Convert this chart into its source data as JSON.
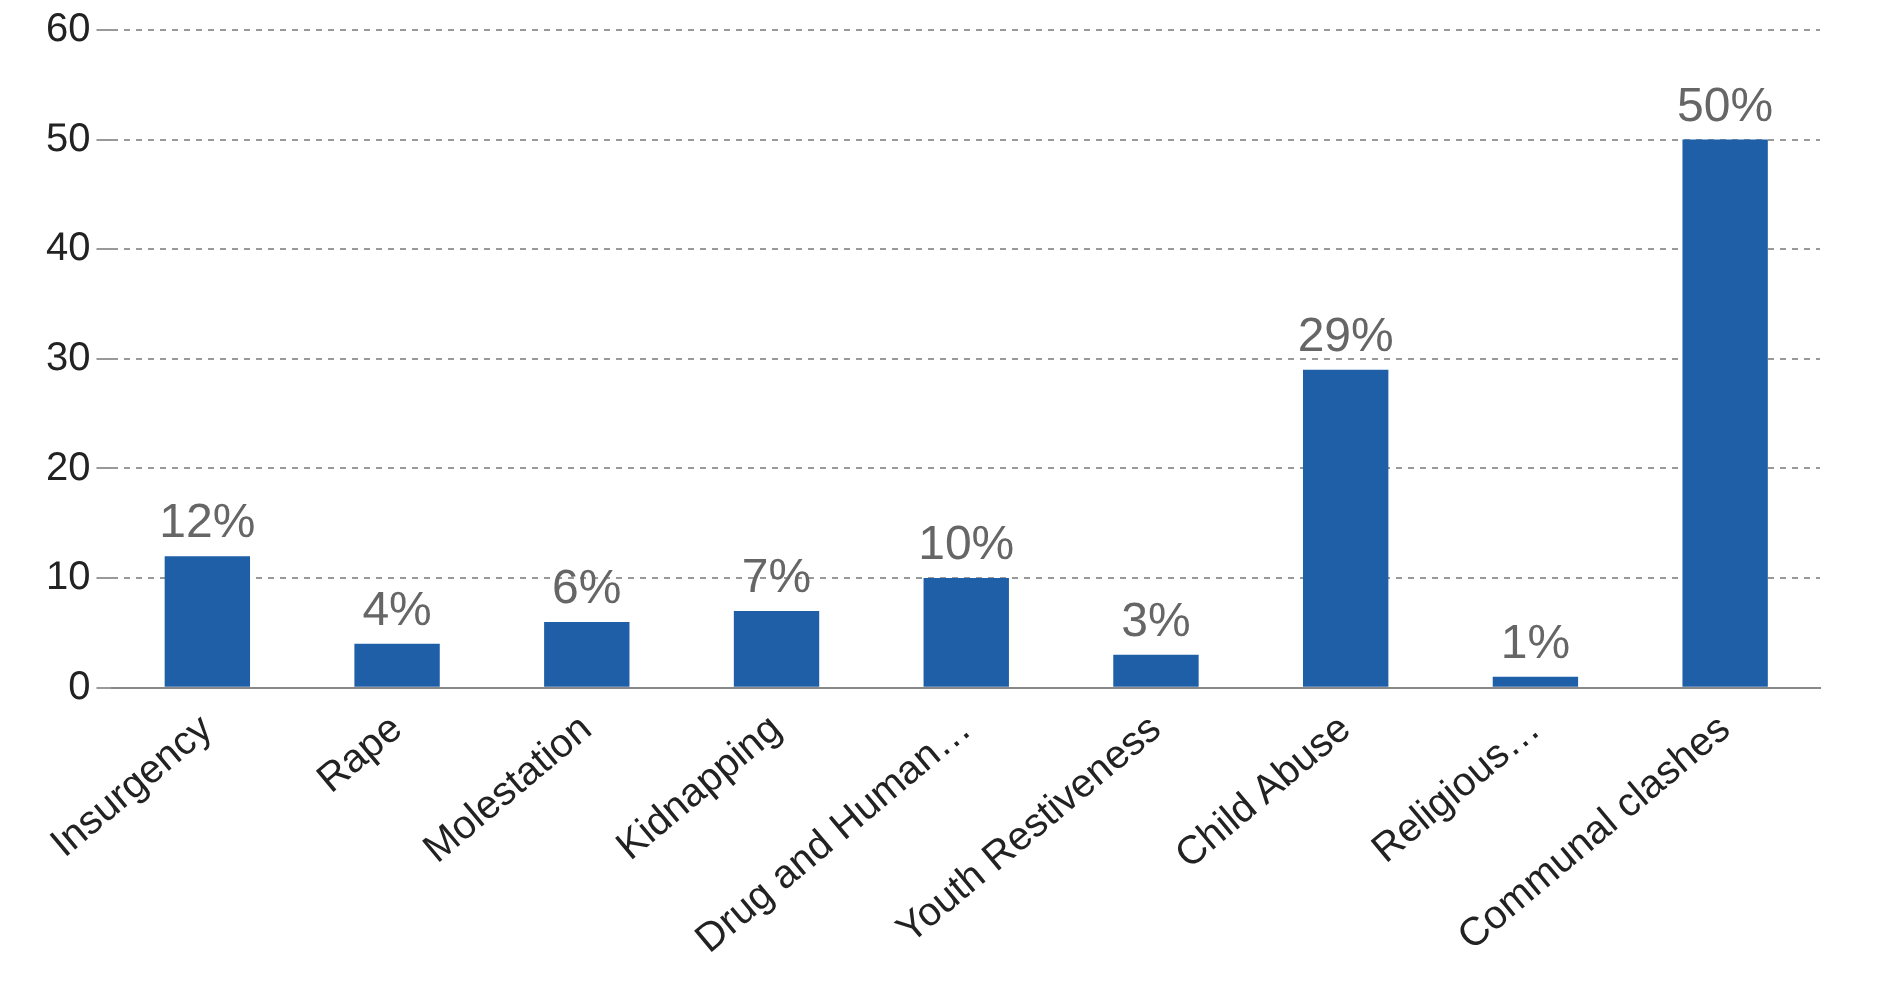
{
  "chart_data": {
    "type": "bar",
    "categories": [
      "Insurgency",
      "Rape",
      "Molestation",
      "Kidnapping",
      "Drug and Human…",
      "Youth Restiveness",
      "Child Abuse",
      "Religious…",
      "Communal clashes"
    ],
    "values": [
      12,
      4,
      6,
      7,
      10,
      3,
      29,
      1,
      50
    ],
    "value_labels": [
      "12%",
      "4%",
      "6%",
      "7%",
      "10%",
      "3%",
      "29%",
      "1%",
      "50%"
    ],
    "color": "#1f5fa8",
    "ylim": [
      0,
      60
    ],
    "yticks": [
      0,
      10,
      20,
      30,
      40,
      50,
      60
    ],
    "grid": "y",
    "legend": false
  }
}
